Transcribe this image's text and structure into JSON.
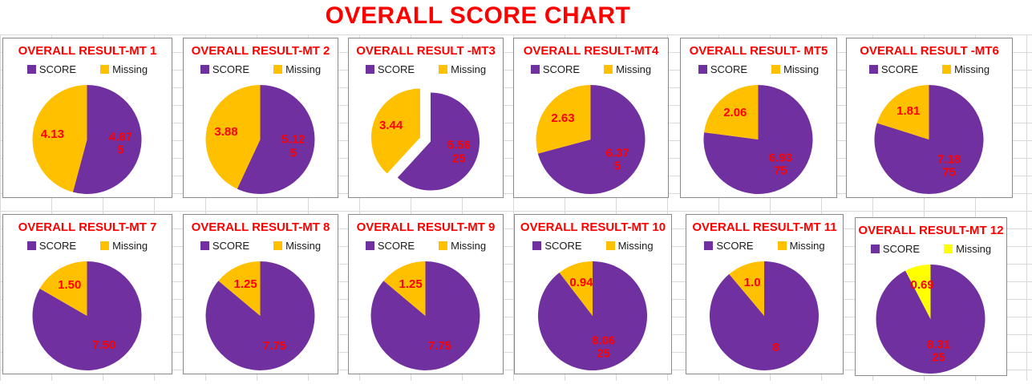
{
  "page": {
    "title": "OVERALL SCORE CHART"
  },
  "colors": {
    "score_purple": "#7030A0",
    "missing_gold": "#FFC000",
    "missing_yellow": "#FFFF00",
    "label_red": "#FF0000",
    "title_red": "#FF0000"
  },
  "chart_data": [
    {
      "type": "pie",
      "title": "OVERALL RESULT-MT 1",
      "categories": [
        "SCORE",
        "Missing"
      ],
      "values": [
        4.875,
        4.125
      ],
      "labels": [
        "4.87\n5",
        "4.13"
      ],
      "colors": [
        "#7030A0",
        "#FFC000"
      ],
      "exploded": false,
      "start_angle": "top",
      "direction": "clockwise",
      "legend_position": "top"
    },
    {
      "type": "pie",
      "title": "OVERALL RESULT-MT 2",
      "categories": [
        "SCORE",
        "Missing"
      ],
      "values": [
        5.125,
        3.875
      ],
      "labels": [
        "5.12\n5",
        "3.88"
      ],
      "colors": [
        "#7030A0",
        "#FFC000"
      ],
      "exploded": false,
      "start_angle": "top",
      "direction": "clockwise",
      "legend_position": "top"
    },
    {
      "type": "pie",
      "title": "OVERALL RESULT -MT3",
      "categories": [
        "SCORE",
        "Missing"
      ],
      "values": [
        5.5625,
        3.4375
      ],
      "labels": [
        "5.56\n25",
        "3.44"
      ],
      "colors": [
        "#7030A0",
        "#FFC000"
      ],
      "exploded": true,
      "start_angle": "top",
      "direction": "clockwise",
      "legend_position": "top"
    },
    {
      "type": "pie",
      "title": "OVERALL RESULT-MT4",
      "categories": [
        "SCORE",
        "Missing"
      ],
      "values": [
        6.375,
        2.625
      ],
      "labels": [
        "6.37\n5",
        "2.63"
      ],
      "colors": [
        "#7030A0",
        "#FFC000"
      ],
      "exploded": false,
      "start_angle": "top",
      "direction": "clockwise",
      "legend_position": "top"
    },
    {
      "type": "pie",
      "title": "OVERALL RESULT- MT5",
      "categories": [
        "SCORE",
        "Missing"
      ],
      "values": [
        6.9375,
        2.0625
      ],
      "labels": [
        "6.93\n75",
        "2.06"
      ],
      "colors": [
        "#7030A0",
        "#FFC000"
      ],
      "exploded": false,
      "start_angle": "top",
      "direction": "clockwise",
      "legend_position": "top"
    },
    {
      "type": "pie",
      "title": "OVERALL RESULT -MT6",
      "categories": [
        "SCORE",
        "Missing"
      ],
      "values": [
        7.1875,
        1.8125
      ],
      "labels": [
        "7.18\n75",
        "1.81"
      ],
      "colors": [
        "#7030A0",
        "#FFC000"
      ],
      "exploded": false,
      "start_angle": "top",
      "direction": "clockwise",
      "legend_position": "top"
    },
    {
      "type": "pie",
      "title": "OVERALL RESULT-MT 7",
      "categories": [
        "SCORE",
        "Missing"
      ],
      "values": [
        7.5,
        1.5
      ],
      "labels": [
        "7.50",
        "1.50"
      ],
      "colors": [
        "#7030A0",
        "#FFC000"
      ],
      "exploded": false,
      "start_angle": "top",
      "direction": "clockwise",
      "legend_position": "top"
    },
    {
      "type": "pie",
      "title": "OVERALL RESULT-MT 8",
      "categories": [
        "SCORE",
        "Missing"
      ],
      "values": [
        7.75,
        1.25
      ],
      "labels": [
        "7.75",
        "1.25"
      ],
      "colors": [
        "#7030A0",
        "#FFC000"
      ],
      "exploded": false,
      "start_angle": "top",
      "direction": "clockwise",
      "legend_position": "top"
    },
    {
      "type": "pie",
      "title": "OVERALL RESULT-MT 9",
      "categories": [
        "SCORE",
        "Missing"
      ],
      "values": [
        7.75,
        1.25
      ],
      "labels": [
        "7.75",
        "1.25"
      ],
      "colors": [
        "#7030A0",
        "#FFC000"
      ],
      "exploded": false,
      "start_angle": "top",
      "direction": "clockwise",
      "legend_position": "top"
    },
    {
      "type": "pie",
      "title": "OVERALL RESULT-MT 10",
      "categories": [
        "SCORE",
        "Missing"
      ],
      "values": [
        8.0625,
        0.9375
      ],
      "labels": [
        "8.06\n25",
        "0.94"
      ],
      "colors": [
        "#7030A0",
        "#FFC000"
      ],
      "exploded": false,
      "start_angle": "top",
      "direction": "clockwise",
      "legend_position": "top"
    },
    {
      "type": "pie",
      "title": "OVERALL RESULT-MT 11",
      "categories": [
        "SCORE",
        "Missing"
      ],
      "values": [
        8,
        1.0
      ],
      "labels": [
        "8",
        "1.0"
      ],
      "colors": [
        "#7030A0",
        "#FFC000"
      ],
      "exploded": false,
      "start_angle": "top",
      "direction": "clockwise",
      "legend_position": "top"
    },
    {
      "type": "pie",
      "title": "OVERALL RESULT-MT 12",
      "categories": [
        "SCORE",
        "Missing"
      ],
      "values": [
        8.3125,
        0.6875
      ],
      "labels": [
        "8.31\n25",
        "0.69"
      ],
      "colors": [
        "#7030A0",
        "#FFFF00"
      ],
      "exploded": false,
      "start_angle": "top",
      "direction": "clockwise",
      "legend_position": "top"
    }
  ]
}
